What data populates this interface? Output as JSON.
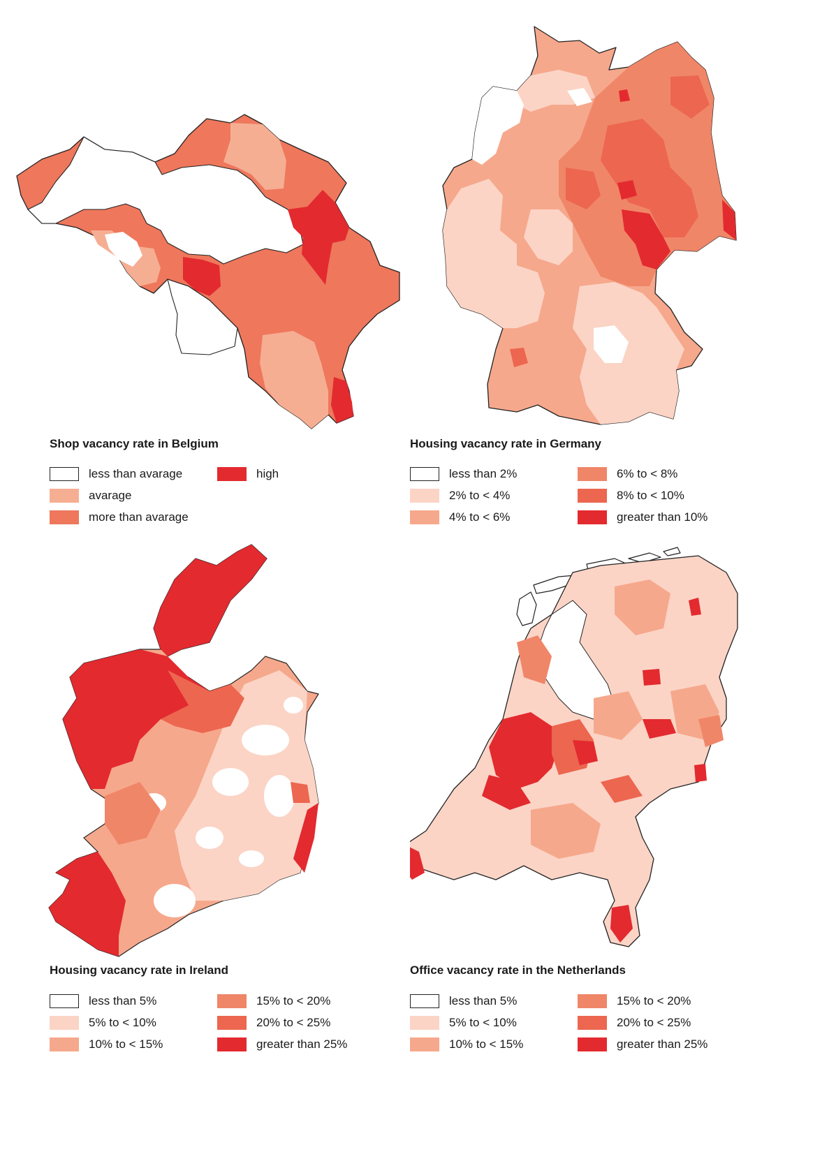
{
  "colors": {
    "c0": "#ffffff",
    "c1": "#fbd4c6",
    "c2": "#f6a88c",
    "c3": "#f08668",
    "c4": "#ec6650",
    "c5": "#e32a2f",
    "outline": "#222222"
  },
  "belgium": {
    "title": "Shop vacancy rate in Belgium",
    "legend": [
      {
        "label": "less than avarage",
        "color": "#ffffff"
      },
      {
        "label": "avarage",
        "color": "#f6ae93"
      },
      {
        "label": "more than avarage",
        "color": "#ee775c"
      },
      {
        "label": "high",
        "color": "#e32a2f"
      }
    ]
  },
  "germany": {
    "title": "Housing vacancy rate in Germany",
    "legend": [
      {
        "label": "less than 2%",
        "color": "#ffffff"
      },
      {
        "label": "2% to < 4%",
        "color": "#fbd4c6"
      },
      {
        "label": "4% to < 6%",
        "color": "#f6a88c"
      },
      {
        "label": "6% to < 8%",
        "color": "#f08668"
      },
      {
        "label": "8% to < 10%",
        "color": "#ec6650"
      },
      {
        "label": "greater than 10%",
        "color": "#e32a2f"
      }
    ]
  },
  "ireland": {
    "title": "Housing vacancy rate in Ireland",
    "legend": [
      {
        "label": "less than 5%",
        "color": "#ffffff"
      },
      {
        "label": "5% to < 10%",
        "color": "#fbd4c6"
      },
      {
        "label": "10% to < 15%",
        "color": "#f6a88c"
      },
      {
        "label": "15% to < 20%",
        "color": "#f08668"
      },
      {
        "label": "20% to < 25%",
        "color": "#ec6650"
      },
      {
        "label": "greater than 25%",
        "color": "#e32a2f"
      }
    ]
  },
  "netherlands": {
    "title": "Office vacancy rate in the Netherlands",
    "legend": [
      {
        "label": "less than 5%",
        "color": "#ffffff"
      },
      {
        "label": "5% to < 10%",
        "color": "#fbd4c6"
      },
      {
        "label": "10% to < 15%",
        "color": "#f6a88c"
      },
      {
        "label": "15% to < 20%",
        "color": "#f08668"
      },
      {
        "label": "20% to < 25%",
        "color": "#ec6650"
      },
      {
        "label": "greater than 25%",
        "color": "#e32a2f"
      }
    ]
  }
}
